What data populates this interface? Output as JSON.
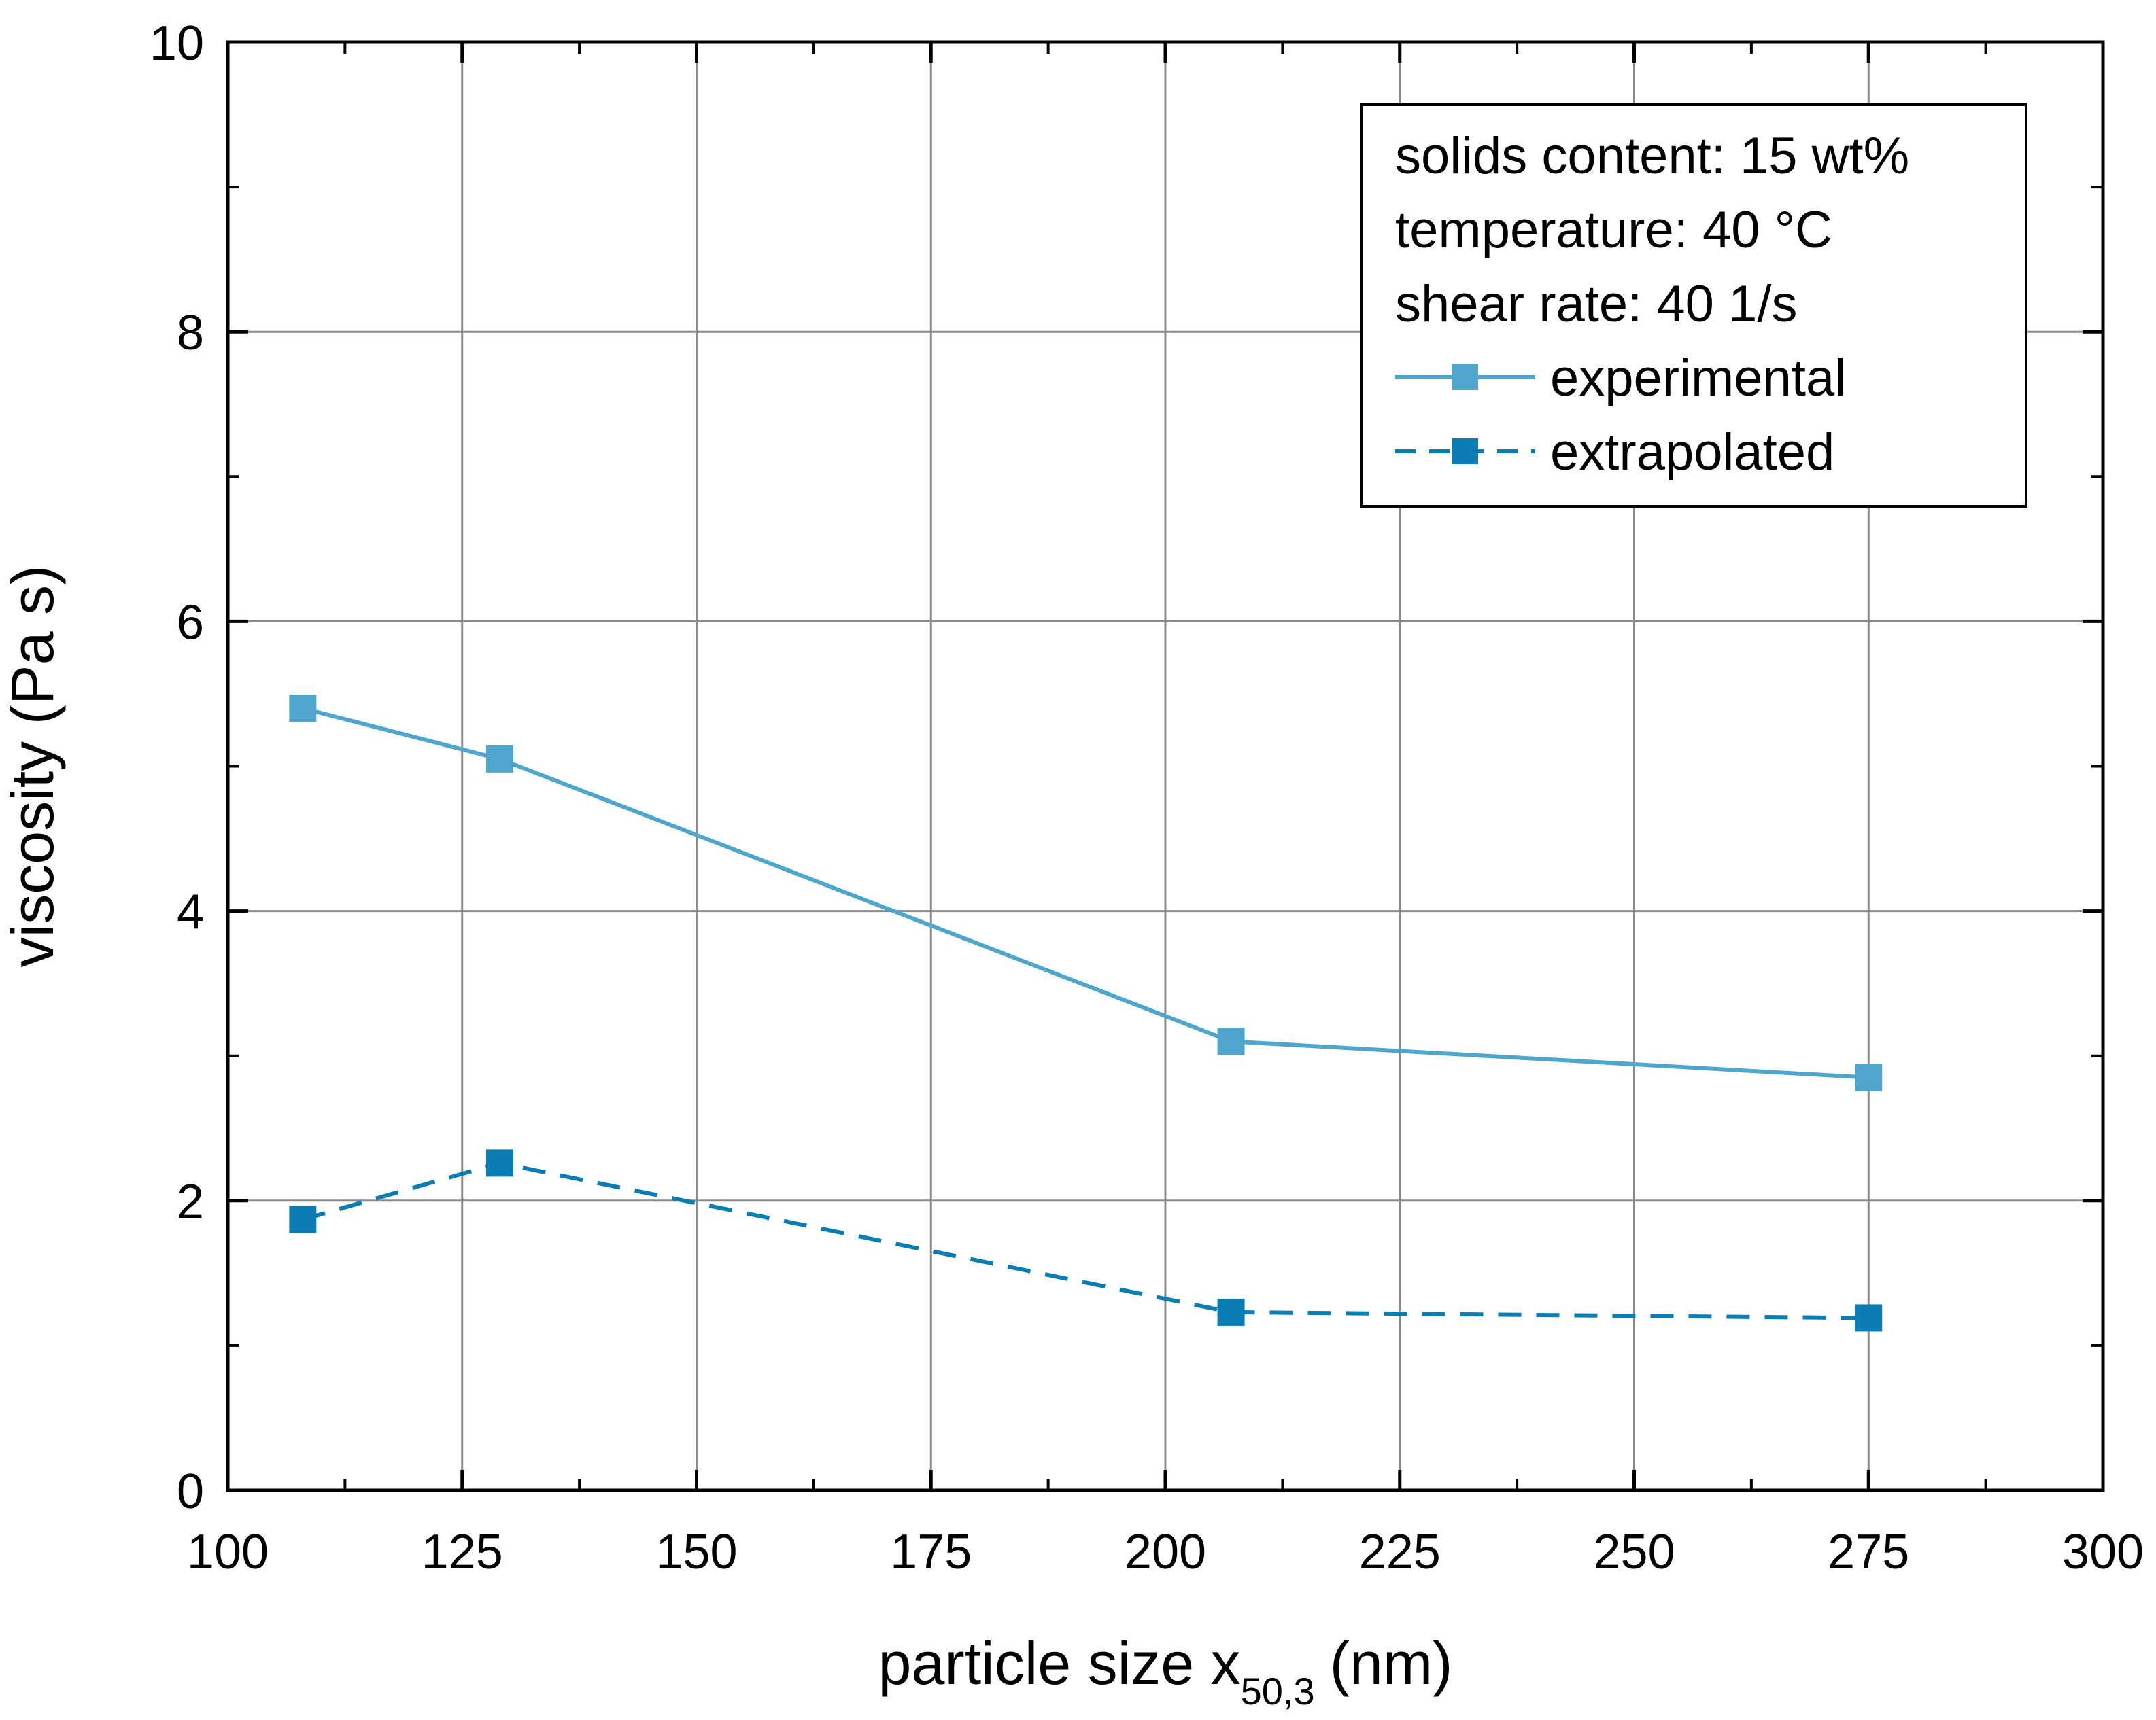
{
  "chart_data": {
    "type": "line",
    "title": "",
    "xlabel": "particle size x",
    "xlabel_subscript": "50,3",
    "xlabel_unit": "(nm)",
    "ylabel": "viscosity (Pa s)",
    "xlim": [
      100,
      300
    ],
    "ylim": [
      0,
      10
    ],
    "x_ticks": [
      100,
      125,
      150,
      175,
      200,
      225,
      250,
      275,
      300
    ],
    "y_ticks": [
      0,
      2,
      4,
      6,
      8,
      10
    ],
    "grid": true,
    "legend_position": "top-right",
    "annotations": [
      "solids content: 15 wt%",
      "temperature: 40 °C",
      "shear rate: 40 1/s"
    ],
    "series": [
      {
        "name": "experimental",
        "style": "solid",
        "marker": "square",
        "color": "#4ea6cf",
        "x": [
          108,
          129,
          207,
          275
        ],
        "y": [
          5.4,
          5.05,
          3.1,
          2.85
        ]
      },
      {
        "name": "extrapolated",
        "style": "dashed",
        "marker": "square",
        "color": "#0b7db5",
        "x": [
          108,
          129,
          207,
          275
        ],
        "y": [
          1.87,
          2.26,
          1.23,
          1.19
        ]
      }
    ]
  }
}
